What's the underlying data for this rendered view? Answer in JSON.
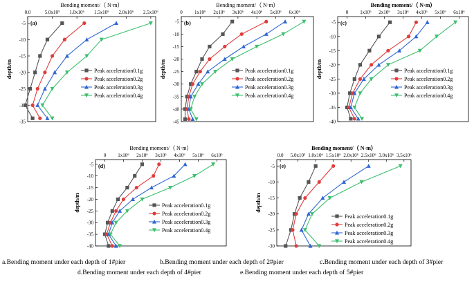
{
  "chart_data": [
    {
      "type": "line",
      "panel_label": "(a)",
      "xlabel": "Bending moment/（ N·m）",
      "ylabel": "depth/m",
      "x_ticks": [
        "0.0",
        "5.0x10⁵",
        "1.0x10⁶",
        "1.5x10⁶",
        "2.0x10⁶",
        "2.5x10⁶"
      ],
      "xlim": [
        0,
        2600000
      ],
      "y_ticks": [
        "-5",
        "-10",
        "-15",
        "-20",
        "-25",
        "-30",
        "-35"
      ],
      "ylim": [
        -35,
        -3
      ],
      "series": [
        {
          "name": "Peak acceleration0.1g",
          "color": "#555555",
          "marker": "square",
          "x": [
            700000,
            400000,
            250000,
            150000,
            50000,
            -50000,
            100000
          ],
          "y": [
            -5,
            -10,
            -15,
            -20,
            -25,
            -30,
            -34
          ]
        },
        {
          "name": "Peak acceleration0.2g",
          "color": "#e03c3c",
          "marker": "circle",
          "x": [
            1150000,
            750000,
            500000,
            350000,
            200000,
            100000,
            250000
          ],
          "y": [
            -5,
            -10,
            -15,
            -20,
            -25,
            -30,
            -34
          ]
        },
        {
          "name": "Peak acceleration0.3g",
          "color": "#2e66d4",
          "marker": "triangle",
          "x": [
            1800000,
            1200000,
            800000,
            550000,
            350000,
            200000,
            400000
          ],
          "y": [
            -5,
            -10,
            -15,
            -20,
            -25,
            -30,
            -34
          ]
        },
        {
          "name": "Peak acceleration0.4g",
          "color": "#3cbf6e",
          "marker": "tri-down",
          "x": [
            2500000,
            1500000,
            1200000,
            800000,
            500000,
            300000,
            500000
          ],
          "y": [
            -5,
            -10,
            -15,
            -20,
            -25,
            -30,
            -34
          ]
        }
      ]
    },
    {
      "type": "line",
      "panel_label": "(b)",
      "xlabel": "Bending moment/（ N·m）",
      "ylabel": "depth/m",
      "x_ticks": [
        "0",
        "1x10⁶",
        "2x10⁶",
        "3x10⁶",
        "4x10⁶",
        "5x10⁶",
        "6x10⁶"
      ],
      "xlim": [
        0,
        7000000
      ],
      "y_ticks": [
        "-5",
        "-10",
        "-15",
        "-20",
        "-25",
        "-30",
        "-35",
        "-40",
        "-45"
      ],
      "ylim": [
        -45,
        -3
      ],
      "series": [
        {
          "name": "Peak acceleration0.1g",
          "color": "#555555",
          "marker": "square",
          "x": [
            2700000,
            2200000,
            1500000,
            1100000,
            800000,
            500000,
            300000,
            200000,
            200000
          ],
          "y": [
            -5,
            -10,
            -15,
            -20,
            -25,
            -30,
            -35,
            -40,
            -44
          ]
        },
        {
          "name": "Peak acceleration0.2g",
          "color": "#e03c3c",
          "marker": "circle",
          "x": [
            4500000,
            3200000,
            2300000,
            1500000,
            1000000,
            600000,
            400000,
            300000,
            400000
          ],
          "y": [
            -5,
            -10,
            -15,
            -20,
            -25,
            -30,
            -35,
            -40,
            -44
          ]
        },
        {
          "name": "Peak acceleration0.3g",
          "color": "#2e66d4",
          "marker": "triangle",
          "x": [
            5500000,
            4500000,
            3300000,
            2300000,
            1400000,
            900000,
            500000,
            400000,
            600000
          ],
          "y": [
            -5,
            -10,
            -15,
            -20,
            -25,
            -30,
            -35,
            -40,
            -44
          ]
        },
        {
          "name": "Peak acceleration0.4g",
          "color": "#3cbf6e",
          "marker": "tri-down",
          "x": [
            6500000,
            5400000,
            4000000,
            2700000,
            1800000,
            1100000,
            700000,
            500000,
            800000
          ],
          "y": [
            -5,
            -10,
            -15,
            -20,
            -25,
            -30,
            -35,
            -40,
            -44
          ]
        }
      ]
    },
    {
      "type": "line",
      "panel_label": "(c)",
      "xlabel": "Bending moment/（ N·m）",
      "ylabel": "depth/m",
      "x_ticks": [
        "0",
        "1x10⁶",
        "2x10⁶",
        "3x10⁶",
        "4x10⁶",
        "5x10⁶",
        "6x10⁶"
      ],
      "xlim": [
        -500000,
        6500000
      ],
      "y_ticks": [
        "-5",
        "-10",
        "-15",
        "-20",
        "-25",
        "-30",
        "-35",
        "-40"
      ],
      "ylim": [
        -40,
        -3
      ],
      "series": [
        {
          "name": "Peak acceleration0.1g",
          "color": "#555555",
          "marker": "square",
          "x": [
            2300000,
            1700000,
            1200000,
            700000,
            400000,
            150000,
            0,
            200000
          ],
          "y": [
            -5,
            -10,
            -15,
            -20,
            -25,
            -30,
            -35,
            -39
          ]
        },
        {
          "name": "Peak acceleration0.2g",
          "color": "#e03c3c",
          "marker": "circle",
          "x": [
            3700000,
            3300000,
            2200000,
            1300000,
            700000,
            300000,
            100000,
            400000
          ],
          "y": [
            -5,
            -10,
            -15,
            -20,
            -25,
            -30,
            -35,
            -39
          ]
        },
        {
          "name": "Peak acceleration0.3g",
          "color": "#2e66d4",
          "marker": "triangle",
          "x": [
            4300000,
            3700000,
            2800000,
            1700000,
            900000,
            400000,
            200000,
            600000
          ],
          "y": [
            -5,
            -10,
            -15,
            -20,
            -25,
            -30,
            -35,
            -39
          ]
        },
        {
          "name": "Peak acceleration0.4g",
          "color": "#3cbf6e",
          "marker": "tri-down",
          "x": [
            5800000,
            4800000,
            3900000,
            2200000,
            1300000,
            700000,
            400000,
            800000
          ],
          "y": [
            -5,
            -10,
            -15,
            -20,
            -25,
            -30,
            -35,
            -39
          ]
        }
      ]
    },
    {
      "type": "line",
      "panel_label": "(d)",
      "xlabel": "Bending moment/（ N·m）",
      "ylabel": "depth/m",
      "x_ticks": [
        "0",
        "1x10⁶",
        "2x10⁶",
        "3x10⁶",
        "4x10⁶",
        "5x10⁶",
        "6x10⁶"
      ],
      "xlim": [
        -500000,
        6500000
      ],
      "y_ticks": [
        "-5",
        "-10",
        "-15",
        "-20",
        "-25",
        "-30",
        "-35",
        "-40"
      ],
      "ylim": [
        -40,
        -3
      ],
      "series": [
        {
          "name": "Peak acceleration0.1g",
          "color": "#555555",
          "marker": "square",
          "x": [
            2000000,
            1600000,
            1200000,
            700000,
            400000,
            150000,
            0,
            200000
          ],
          "y": [
            -5,
            -10,
            -15,
            -20,
            -25,
            -30,
            -35,
            -40
          ]
        },
        {
          "name": "Peak acceleration0.2g",
          "color": "#e03c3c",
          "marker": "circle",
          "x": [
            2900000,
            2600000,
            1700000,
            1000000,
            600000,
            300000,
            100000,
            400000
          ],
          "y": [
            -5,
            -10,
            -15,
            -20,
            -25,
            -30,
            -35,
            -40
          ]
        },
        {
          "name": "Peak acceleration0.3g",
          "color": "#2e66d4",
          "marker": "triangle",
          "x": [
            4300000,
            3700000,
            2500000,
            1500000,
            800000,
            400000,
            200000,
            600000
          ],
          "y": [
            -5,
            -10,
            -15,
            -20,
            -25,
            -30,
            -35,
            -40
          ]
        },
        {
          "name": "Peak acceleration0.4g",
          "color": "#3cbf6e",
          "marker": "tri-down",
          "x": [
            5800000,
            4800000,
            3500000,
            2000000,
            1200000,
            600000,
            300000,
            800000
          ],
          "y": [
            -5,
            -10,
            -15,
            -20,
            -25,
            -30,
            -35,
            -40
          ]
        }
      ]
    },
    {
      "type": "line",
      "panel_label": "(e)",
      "xlabel": "Bending moment/（ N·m）",
      "ylabel": "depth/m",
      "x_ticks": [
        "0.0",
        "5.0x10⁵",
        "1.0x10⁶",
        "1.5x10⁶",
        "2.0x10⁶",
        "2.5x10⁶",
        "3.0x10⁶",
        "3.5x10⁶"
      ],
      "xlim": [
        -100000,
        3700000
      ],
      "y_ticks": [
        "-5",
        "-10",
        "-15",
        "-20",
        "-25",
        "-30"
      ],
      "ylim": [
        -30,
        -3
      ],
      "series": [
        {
          "name": "Peak acceleration0.1g",
          "color": "#555555",
          "marker": "square",
          "x": [
            1000000,
            800000,
            550000,
            400000,
            300000,
            150000
          ],
          "y": [
            -5,
            -10,
            -15,
            -20,
            -25,
            -30
          ]
        },
        {
          "name": "Peak acceleration0.2g",
          "color": "#e03c3c",
          "marker": "circle",
          "x": [
            1500000,
            1100000,
            700000,
            450000,
            350000,
            450000
          ],
          "y": [
            -5,
            -10,
            -15,
            -20,
            -25,
            -30
          ]
        },
        {
          "name": "Peak acceleration0.3g",
          "color": "#2e66d4",
          "marker": "triangle",
          "x": [
            2500000,
            1800000,
            1200000,
            800000,
            600000,
            850000
          ],
          "y": [
            -5,
            -10,
            -15,
            -20,
            -25,
            -30
          ]
        },
        {
          "name": "Peak acceleration0.4g",
          "color": "#3cbf6e",
          "marker": "tri-down",
          "x": [
            3400000,
            2300000,
            1400000,
            900000,
            700000,
            1100000
          ],
          "y": [
            -5,
            -10,
            -15,
            -20,
            -25,
            -30
          ]
        }
      ]
    }
  ],
  "captions": {
    "a": "a.Bending moment under each depth of 1#pier",
    "b": "b.Bending moment under each depth of 2#pier",
    "c": "c.Bending moment under each depth of 3#pier",
    "d": "d.Bending moment under each depth of 4#pier",
    "e": "e.Bending moment under each depth of 5#pier"
  }
}
